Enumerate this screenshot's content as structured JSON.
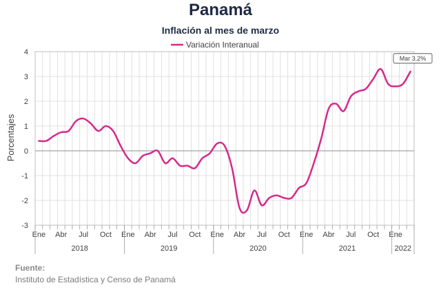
{
  "header": {
    "title": "Panamá",
    "subtitle": "Inflación al mes de marzo"
  },
  "source": {
    "label": "Fuente:",
    "text": "Instituto de Estadística y Censo de Panamá"
  },
  "colors": {
    "series": "#d6288c",
    "grid": "#d9d9d9",
    "text": "#404040",
    "title": "#1f2a44"
  },
  "chart_data": {
    "type": "line",
    "title": "Inflación al mes de marzo",
    "ylabel": "Porcentajes",
    "ylim": [
      -3,
      4
    ],
    "yticks": [
      -3,
      -2,
      -1,
      0,
      1,
      2,
      3,
      4
    ],
    "grid": true,
    "legend_position": "top-center",
    "x_month_labels": [
      "Ene",
      "Abr",
      "Jul",
      "Oct",
      "Ene",
      "Abr",
      "Jul",
      "Oct",
      "Ene",
      "Abr",
      "Jul",
      "Oct",
      "Ene",
      "Abr",
      "Jul",
      "Oct",
      "Ene"
    ],
    "x_year_labels": [
      "2018",
      "2019",
      "2020",
      "2021",
      "2022"
    ],
    "annotation": "Mar 3.2%",
    "series": [
      {
        "name": "Variación Interanual",
        "x": [
          "2018-01",
          "2018-02",
          "2018-03",
          "2018-04",
          "2018-05",
          "2018-06",
          "2018-07",
          "2018-08",
          "2018-09",
          "2018-10",
          "2018-11",
          "2018-12",
          "2019-01",
          "2019-02",
          "2019-03",
          "2019-04",
          "2019-05",
          "2019-06",
          "2019-07",
          "2019-08",
          "2019-09",
          "2019-10",
          "2019-11",
          "2019-12",
          "2020-01",
          "2020-02",
          "2020-03",
          "2020-04",
          "2020-05",
          "2020-06",
          "2020-07",
          "2020-08",
          "2020-09",
          "2020-10",
          "2020-11",
          "2020-12",
          "2021-01",
          "2021-02",
          "2021-03",
          "2021-04",
          "2021-05",
          "2021-06",
          "2021-07",
          "2021-08",
          "2021-09",
          "2021-10",
          "2021-11",
          "2021-12",
          "2022-01",
          "2022-02",
          "2022-03"
        ],
        "values": [
          0.4,
          0.4,
          0.6,
          0.75,
          0.8,
          1.2,
          1.3,
          1.1,
          0.8,
          1.0,
          0.8,
          0.2,
          -0.3,
          -0.5,
          -0.2,
          -0.1,
          0.0,
          -0.5,
          -0.3,
          -0.6,
          -0.6,
          -0.7,
          -0.3,
          -0.1,
          0.3,
          0.2,
          -0.7,
          -2.3,
          -2.4,
          -1.6,
          -2.2,
          -1.9,
          -1.8,
          -1.9,
          -1.9,
          -1.5,
          -1.3,
          -0.5,
          0.5,
          1.7,
          1.9,
          1.6,
          2.2,
          2.4,
          2.5,
          2.9,
          3.3,
          2.7,
          2.6,
          2.7,
          3.2
        ]
      }
    ]
  }
}
